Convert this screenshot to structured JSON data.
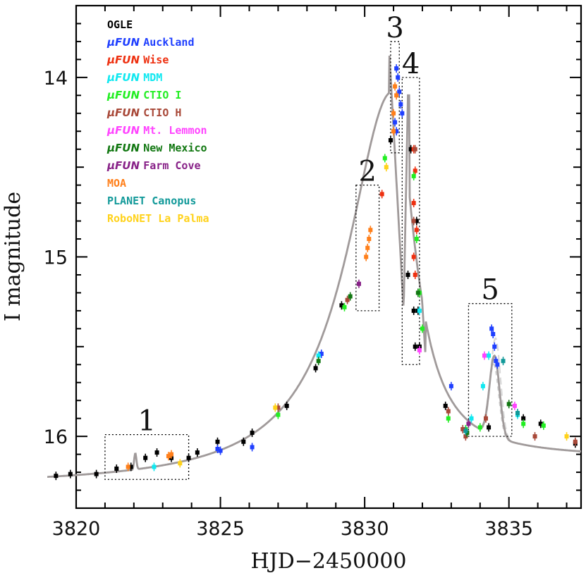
{
  "chart_data": {
    "type": "scatter",
    "xlabel": "HJD−2450000",
    "ylabel": "I magnitude",
    "xlim": [
      3820,
      3837.5
    ],
    "ylim": [
      16.4,
      13.6
    ],
    "y_inverted": true,
    "x_ticks": [
      3820,
      3825,
      3830,
      3835
    ],
    "y_ticks": [
      14,
      15,
      16
    ],
    "legend_position": "top-left",
    "series": [
      {
        "name": "OGLE",
        "prefix": "",
        "color": "#000000",
        "points": [
          [
            3819.3,
            16.22
          ],
          [
            3819.8,
            16.21
          ],
          [
            3820.7,
            16.21
          ],
          [
            3821.4,
            16.18
          ],
          [
            3821.9,
            16.17
          ],
          [
            3822.4,
            16.12
          ],
          [
            3822.8,
            16.09
          ],
          [
            3823.3,
            16.12
          ],
          [
            3823.9,
            16.12
          ],
          [
            3824.2,
            16.09
          ],
          [
            3824.9,
            16.03
          ],
          [
            3825.8,
            16.03
          ],
          [
            3826.1,
            15.98
          ],
          [
            3827.3,
            15.83
          ],
          [
            3828.3,
            15.62
          ],
          [
            3829.2,
            15.27
          ],
          [
            3830.9,
            14.35
          ],
          [
            3831.5,
            15.1
          ],
          [
            3831.6,
            14.4
          ],
          [
            3831.7,
            15.3
          ],
          [
            3831.75,
            15.5
          ],
          [
            3831.8,
            14.8
          ],
          [
            3831.85,
            15.3
          ],
          [
            3831.9,
            15.5
          ],
          [
            3832.8,
            15.83
          ],
          [
            3834.3,
            15.95
          ],
          [
            3835.5,
            15.9
          ],
          [
            3836.1,
            15.93
          ],
          [
            3837.3,
            16.04
          ]
        ]
      },
      {
        "name": "Auckland",
        "prefix": "μFUN",
        "color": "#1f3fff",
        "points": [
          [
            3824.9,
            16.07
          ],
          [
            3825.0,
            16.08
          ],
          [
            3826.1,
            16.06
          ],
          [
            3828.5,
            15.54
          ],
          [
            3831.1,
            13.95
          ],
          [
            3831.15,
            14.0
          ],
          [
            3831.2,
            14.08
          ],
          [
            3831.25,
            14.15
          ],
          [
            3831.3,
            14.2
          ],
          [
            3831.1,
            14.3
          ],
          [
            3831.05,
            14.25
          ],
          [
            3833.0,
            15.72
          ],
          [
            3834.4,
            15.4
          ],
          [
            3834.45,
            15.43
          ],
          [
            3834.5,
            15.5
          ],
          [
            3834.55,
            15.58
          ],
          [
            3834.6,
            15.6
          ]
        ]
      },
      {
        "name": "Wise",
        "prefix": "μFUN",
        "color": "#ee3010",
        "points": [
          [
            3830.6,
            14.65
          ],
          [
            3831.7,
            14.4
          ],
          [
            3831.75,
            14.52
          ],
          [
            3831.7,
            14.7
          ],
          [
            3831.8,
            14.85
          ],
          [
            3831.7,
            15.0
          ],
          [
            3831.75,
            15.1
          ]
        ]
      },
      {
        "name": "MDM",
        "prefix": "μFUN",
        "color": "#10e8f0",
        "points": [
          [
            3822.7,
            16.17
          ],
          [
            3828.4,
            15.55
          ],
          [
            3831.9,
            15.3
          ],
          [
            3833.7,
            15.9
          ],
          [
            3834.1,
            15.72
          ],
          [
            3834.3,
            15.55
          ],
          [
            3835.3,
            15.88
          ]
        ]
      },
      {
        "name": "CTIO I",
        "prefix": "μFUN",
        "color": "#22ee22",
        "points": [
          [
            3827.0,
            15.88
          ],
          [
            3829.3,
            15.28
          ],
          [
            3830.7,
            14.45
          ],
          [
            3831.7,
            14.55
          ],
          [
            3831.8,
            14.9
          ],
          [
            3831.9,
            15.2
          ],
          [
            3832.0,
            15.4
          ],
          [
            3832.9,
            15.9
          ],
          [
            3833.5,
            15.96
          ],
          [
            3834.0,
            15.95
          ],
          [
            3835.5,
            15.93
          ],
          [
            3836.2,
            15.94
          ]
        ]
      },
      {
        "name": "CTIO H",
        "prefix": "μFUN",
        "color": "#a84838",
        "points": [
          [
            3827.0,
            15.84
          ],
          [
            3829.4,
            15.24
          ],
          [
            3831.75,
            14.4
          ],
          [
            3831.7,
            14.8
          ],
          [
            3832.9,
            15.86
          ],
          [
            3833.4,
            15.96
          ],
          [
            3833.5,
            16.0
          ],
          [
            3834.2,
            15.9
          ],
          [
            3835.9,
            16.0
          ],
          [
            3837.3,
            16.03
          ]
        ]
      },
      {
        "name": "Mt. Lemmon",
        "prefix": "μFUN",
        "color": "#ff44ff",
        "points": [
          [
            3831.9,
            15.52
          ],
          [
            3834.15,
            15.55
          ],
          [
            3835.2,
            15.83
          ]
        ]
      },
      {
        "name": "New Mexico",
        "prefix": "μFUN",
        "color": "#117711",
        "points": [
          [
            3828.4,
            15.58
          ],
          [
            3829.5,
            15.22
          ],
          [
            3831.85,
            15.2
          ],
          [
            3833.55,
            15.98
          ],
          [
            3835.0,
            15.82
          ]
        ]
      },
      {
        "name": "Farm Cove",
        "prefix": "μFUN",
        "color": "#882288",
        "points": [
          [
            3829.8,
            15.15
          ],
          [
            3833.6,
            15.93
          ]
        ]
      },
      {
        "name": "MOA",
        "prefix": "",
        "color": "#ff7f1a",
        "points": [
          [
            3821.8,
            16.17
          ],
          [
            3823.2,
            16.11
          ],
          [
            3823.3,
            16.1
          ],
          [
            3830.05,
            15.0
          ],
          [
            3830.1,
            14.95
          ],
          [
            3830.15,
            14.9
          ],
          [
            3830.2,
            14.85
          ],
          [
            3831.05,
            14.05
          ],
          [
            3831.1,
            14.1
          ],
          [
            3831.0,
            14.2
          ],
          [
            3831.0,
            14.3
          ]
        ]
      },
      {
        "name": "PLANET Canopus",
        "prefix": "",
        "color": "#119999",
        "points": [
          [
            3833.5,
            15.97
          ],
          [
            3834.8,
            15.58
          ],
          [
            3835.3,
            15.87
          ]
        ]
      },
      {
        "name": "RoboNET La Palma",
        "prefix": "",
        "color": "#ffd21a",
        "points": [
          [
            3823.6,
            16.15
          ],
          [
            3826.9,
            15.84
          ],
          [
            3830.75,
            14.5
          ],
          [
            3837.0,
            16.0
          ]
        ]
      }
    ],
    "annotations": [
      {
        "label": "1",
        "x0": 3821.0,
        "x1": 3823.9,
        "y0": 15.99,
        "y1": 16.24
      },
      {
        "label": "2",
        "x0": 3829.7,
        "x1": 3830.5,
        "y0": 14.6,
        "y1": 15.3
      },
      {
        "label": "3",
        "x0": 3830.9,
        "x1": 3831.2,
        "y0": 13.8,
        "y1": 14.42
      },
      {
        "label": "4",
        "x0": 3831.3,
        "x1": 3831.9,
        "y0": 14.0,
        "y1": 15.6
      },
      {
        "label": "5",
        "x0": 3833.6,
        "x1": 3835.1,
        "y0": 15.26,
        "y1": 16.0
      }
    ]
  }
}
